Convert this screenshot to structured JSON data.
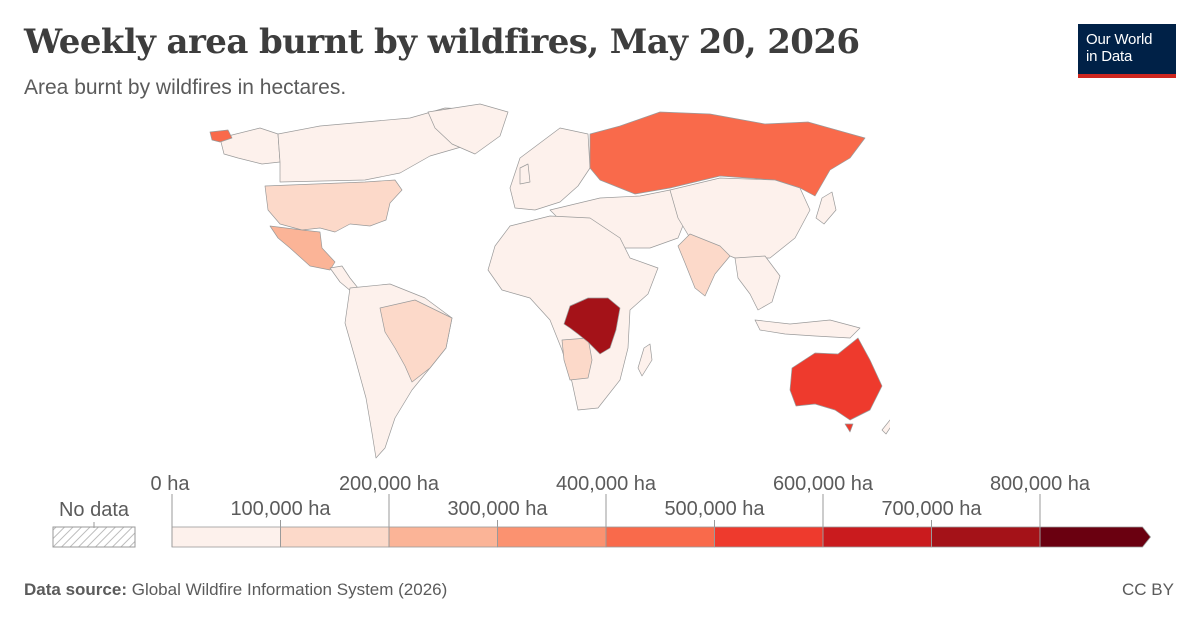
{
  "title": "Weekly area burnt by wildfires, May 20, 2026",
  "subtitle": "Area burnt by wildfires in hectares.",
  "logo": {
    "line1": "Our World",
    "line2": "in Data"
  },
  "legend": {
    "no_data_label": "No data",
    "bins": [
      {
        "label": "0 ha",
        "color": "#fdf1ec"
      },
      {
        "label": "100,000 ha",
        "color": "#fcd9c9"
      },
      {
        "label": "200,000 ha",
        "color": "#fbb497"
      },
      {
        "label": "300,000 ha",
        "color": "#fb9270"
      },
      {
        "label": "400,000 ha",
        "color": "#f96a4b"
      },
      {
        "label": "500,000 ha",
        "color": "#ee3a2d"
      },
      {
        "label": "600,000 ha",
        "color": "#ca1b1e"
      },
      {
        "label": "700,000 ha",
        "color": "#a41218"
      },
      {
        "label": "800,000 ha",
        "color": "#6a0010"
      }
    ]
  },
  "regions": [
    {
      "name": "Democratic Republic of Congo",
      "color": "#a41218"
    },
    {
      "name": "Australia",
      "color": "#ee3a2d"
    },
    {
      "name": "Russia",
      "color": "#f96a4b"
    },
    {
      "name": "Mexico",
      "color": "#fbb497"
    },
    {
      "name": "Angola",
      "color": "#fcd9c9"
    },
    {
      "name": "Brazil",
      "color": "#fcd9c9"
    },
    {
      "name": "United States",
      "color": "#fcd9c9"
    },
    {
      "name": "India",
      "color": "#fcd9c9"
    },
    {
      "name": "Canada",
      "color": "#fdf1ec"
    },
    {
      "name": "China",
      "color": "#fdf1ec"
    }
  ],
  "footer": {
    "source_label": "Data source:",
    "source_text": "Global Wildfire Information System (2026)",
    "license": "CC BY"
  }
}
